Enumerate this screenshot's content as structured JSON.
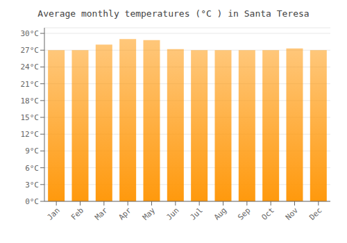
{
  "chart_data": {
    "type": "bar",
    "title": "Average monthly temperatures (°C ) in Santa Teresa",
    "categories": [
      "Jan",
      "Feb",
      "Mar",
      "Apr",
      "May",
      "Jun",
      "Jul",
      "Aug",
      "Sep",
      "Oct",
      "Nov",
      "Dec"
    ],
    "values": [
      27.0,
      27.0,
      28.0,
      29.0,
      28.8,
      27.2,
      27.0,
      27.0,
      27.0,
      27.0,
      27.3,
      27.0
    ],
    "color": "#ff990d",
    "ylim": [
      0,
      31
    ],
    "yticks": [
      {
        "value": 0,
        "label": "0°C"
      },
      {
        "value": 3,
        "label": "3°C"
      },
      {
        "value": 6,
        "label": "6°C"
      },
      {
        "value": 9,
        "label": "9°C"
      },
      {
        "value": 12,
        "label": "12°C"
      },
      {
        "value": 15,
        "label": "15°C"
      },
      {
        "value": 18,
        "label": "18°C"
      },
      {
        "value": 21,
        "label": "21°C"
      },
      {
        "value": 24,
        "label": "24°C"
      },
      {
        "value": 27,
        "label": "27°C"
      },
      {
        "value": 30,
        "label": "30°C"
      }
    ],
    "grid": true
  }
}
